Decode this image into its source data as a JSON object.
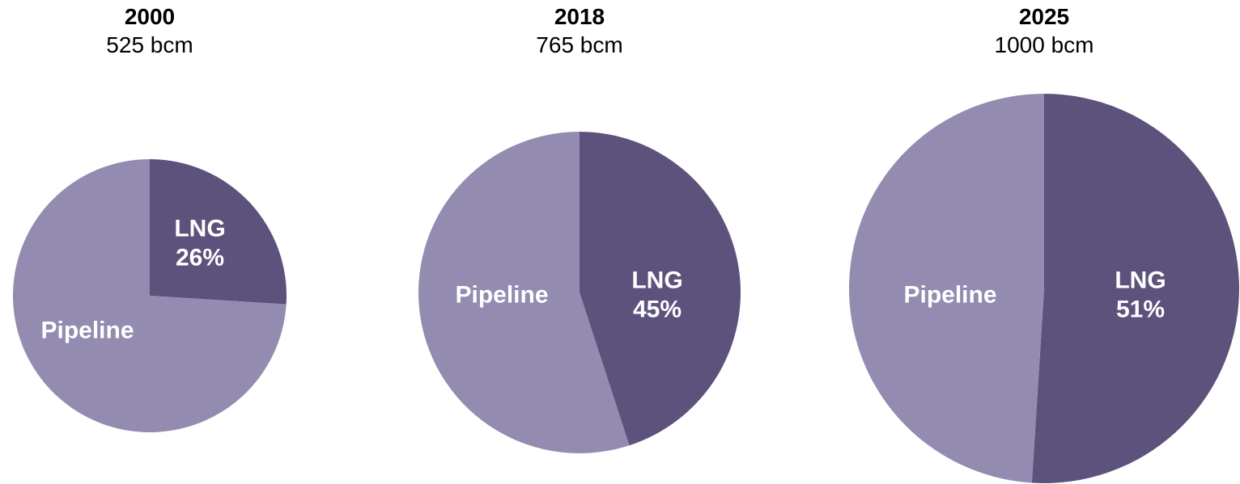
{
  "chart_data": [
    {
      "type": "pie",
      "title": "2000",
      "subtitle": "525 bcm",
      "slices": [
        {
          "label": "LNG",
          "value_label": "26%",
          "value": 26,
          "color": "#5c527c"
        },
        {
          "label": "Pipeline",
          "value_label": "",
          "value": 74,
          "color": "#948bb0"
        }
      ]
    },
    {
      "type": "pie",
      "title": "2018",
      "subtitle": "765 bcm",
      "slices": [
        {
          "label": "LNG",
          "value_label": "45%",
          "value": 45,
          "color": "#5c527c"
        },
        {
          "label": "Pipeline",
          "value_label": "",
          "value": 55,
          "color": "#948bb0"
        }
      ]
    },
    {
      "type": "pie",
      "title": "2025",
      "subtitle": "1000 bcm",
      "slices": [
        {
          "label": "LNG",
          "value_label": "51%",
          "value": 51,
          "color": "#5c527c"
        },
        {
          "label": "Pipeline",
          "value_label": "",
          "value": 49,
          "color": "#948bb0"
        }
      ]
    }
  ]
}
